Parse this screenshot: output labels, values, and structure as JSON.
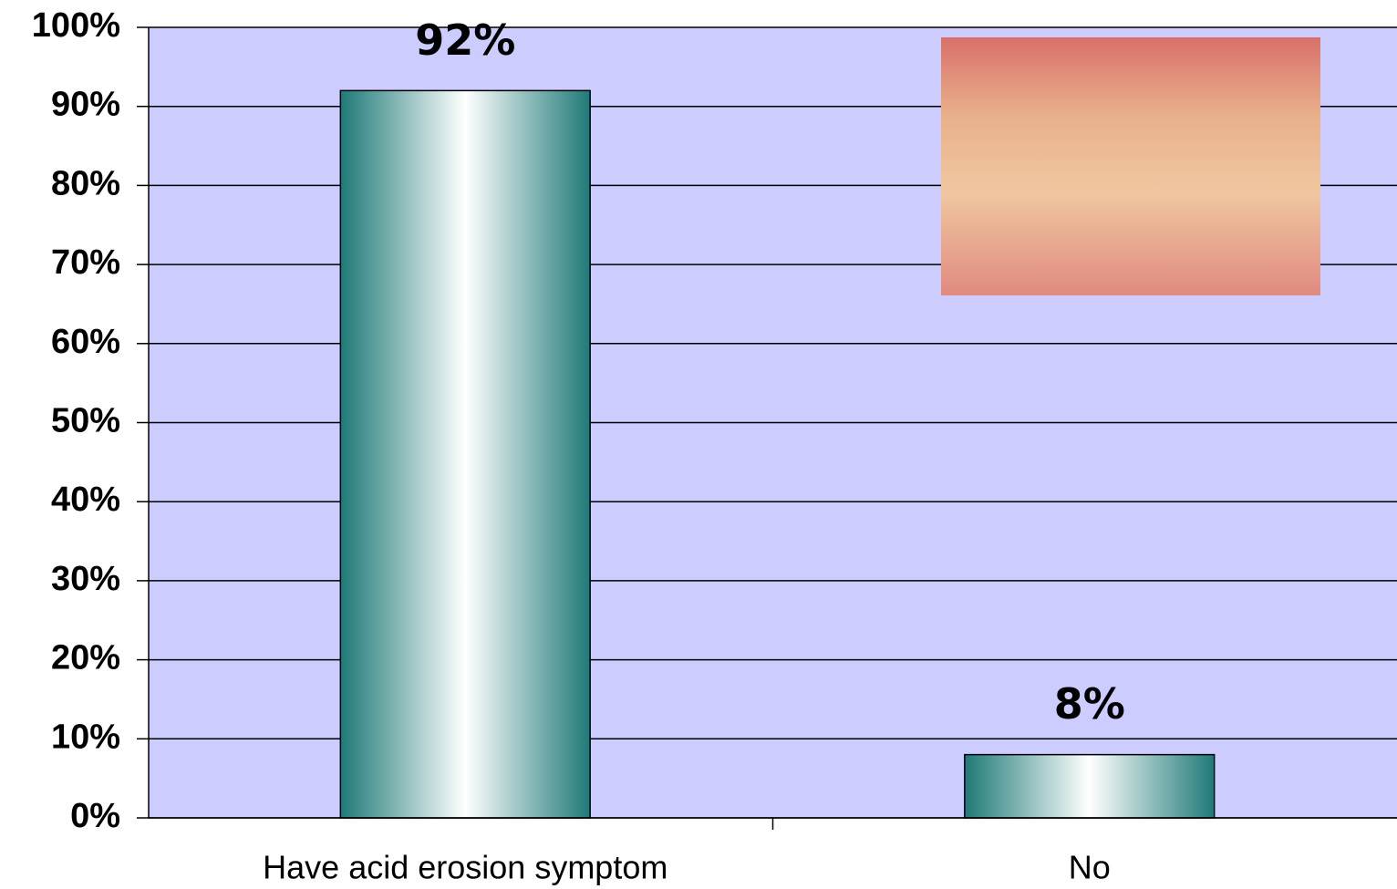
{
  "chart_data": {
    "type": "bar",
    "categories": [
      "Have acid erosion symptom",
      "No"
    ],
    "values": [
      92,
      8
    ],
    "value_labels": [
      "92%",
      "8%"
    ],
    "color": "#1f7a78",
    "ylim": [
      0,
      100
    ],
    "yticks": [
      {
        "value": 0,
        "label": "0%"
      },
      {
        "value": 10,
        "label": "10%"
      },
      {
        "value": 20,
        "label": "20%"
      },
      {
        "value": 30,
        "label": "30%"
      },
      {
        "value": 40,
        "label": "40%"
      },
      {
        "value": 50,
        "label": "50%"
      },
      {
        "value": 60,
        "label": "60%"
      },
      {
        "value": 70,
        "label": "70%"
      },
      {
        "value": 80,
        "label": "80%"
      },
      {
        "value": 90,
        "label": "90%"
      },
      {
        "value": 100,
        "label": "100%"
      }
    ],
    "grid": true
  }
}
